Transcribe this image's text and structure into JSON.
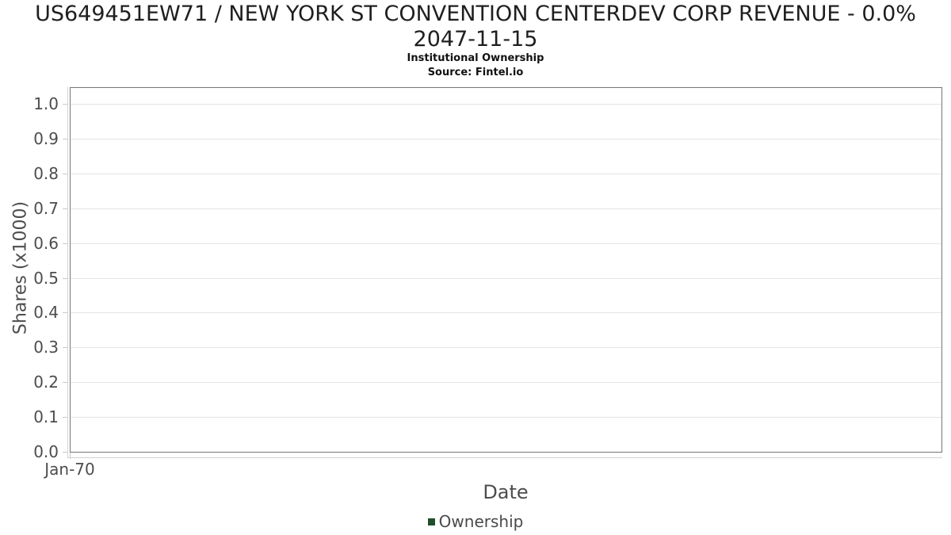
{
  "chart_data": {
    "type": "line",
    "title": "US649451EW71 / NEW YORK ST CONVENTION CENTERDEV CORP REVENUE - 0.0% 2047-11-15",
    "title_line1": "US649451EW71 / NEW YORK ST CONVENTION CENTERDEV CORP REVENUE - 0.0%",
    "title_line2": "2047-11-15",
    "subtitle": "Institutional Ownership",
    "source": "Source: Fintel.io",
    "xlabel": "Date",
    "ylabel": "Shares (x1000)",
    "x_ticks": [
      "Jan-70"
    ],
    "y_ticks": [
      "0.0",
      "0.1",
      "0.2",
      "0.3",
      "0.4",
      "0.5",
      "0.6",
      "0.7",
      "0.8",
      "0.9",
      "1.0"
    ],
    "ylim": [
      0.0,
      1.05
    ],
    "xlim_label": "Jan-70",
    "grid": "horizontal",
    "legend_position": "bottom",
    "series": [
      {
        "name": "Ownership",
        "color": "#204d2a",
        "x": [],
        "values": []
      }
    ]
  },
  "colors": {
    "frame": "#757575",
    "gridline": "#e4e4e4",
    "axis_line": "#d2d2d2",
    "tick_mark": "#c9c9c9",
    "title_text": "#1f1f1f",
    "axis_text": "#4d4d4d",
    "legend_swatch": "#204d2a",
    "background": "#ffffff"
  }
}
